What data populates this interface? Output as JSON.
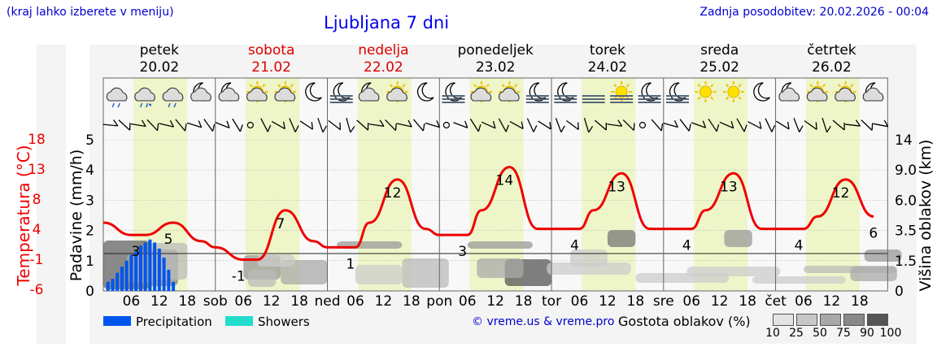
{
  "header": {
    "note": "(kraj lahko izberete v meniju)",
    "title": "Ljubljana 7 dni",
    "updated": "Zadnja posodobitev: 20.02.2026 - 00:04"
  },
  "days": [
    {
      "name": "petek",
      "date": "20.02",
      "abbr": "",
      "weekend": false
    },
    {
      "name": "sobota",
      "date": "21.02",
      "abbr": "sob",
      "weekend": true
    },
    {
      "name": "nedelja",
      "date": "22.02",
      "abbr": "ned",
      "weekend": true
    },
    {
      "name": "ponedeljek",
      "date": "23.02",
      "abbr": "pon",
      "weekend": false
    },
    {
      "name": "torek",
      "date": "24.02",
      "abbr": "tor",
      "weekend": false
    },
    {
      "name": "sreda",
      "date": "25.02",
      "abbr": "sre",
      "weekend": false
    },
    {
      "name": "četrtek",
      "date": "26.02",
      "abbr": "čet",
      "weekend": false
    }
  ],
  "hour_labels": [
    "06",
    "12",
    "18"
  ],
  "weather_icons": [
    "rain-cloud-icon",
    "snow-rain-cloud-icon",
    "rain-cloud-icon",
    "moon-cloud-icon",
    "moon-cloud-icon",
    "sun-cloud-icon",
    "sun-cloud-icon",
    "moon-icon",
    "moon-fog-icon",
    "moon-cloud-icon",
    "sun-cloud-icon",
    "moon-icon",
    "moon-fog-icon",
    "sun-cloud-icon",
    "sun-cloud-icon",
    "moon-fog-icon",
    "moon-fog-icon",
    "fog-icon",
    "sun-fog-icon",
    "moon-fog-icon",
    "moon-fog-icon",
    "sun-icon",
    "sun-icon",
    "moon-icon",
    "moon-cloud-icon",
    "sun-cloud-icon",
    "sun-cloud-icon",
    "moon-cloud-icon"
  ],
  "axes": {
    "temp_label": "Temperatura (°C)",
    "temp_ticks": [
      "18",
      "13",
      "8",
      "4",
      "-1",
      "-6"
    ],
    "left_label": "Padavine (mm/h)",
    "left_ticks": [
      "0",
      "1",
      "2",
      "3",
      "4",
      "5"
    ],
    "right_label": "Višina oblakov (km)",
    "right_ticks": [
      "0",
      "1.5",
      "3.5",
      "6.0",
      "9.0",
      "14"
    ]
  },
  "legend": {
    "precip": "Precipitation",
    "showers": "Showers",
    "precip_color": "#0055ee",
    "showers_color": "#22ddcc",
    "copyright": "© vreme.us & vreme.pro",
    "cloud_title": "Gostota oblakov (%)",
    "cloud_levels": [
      "10",
      "25",
      "50",
      "75",
      "90",
      "100"
    ],
    "cloud_colors": [
      "#e4e4e4",
      "#c8c8c8",
      "#a8a8a8",
      "#888888",
      "#555555"
    ]
  },
  "chart_data": {
    "type": "line",
    "title": "Ljubljana 7 dni",
    "xlabel": "",
    "ylabel": "Temperatura (°C)",
    "ylim": [
      -6,
      18
    ],
    "temperature": {
      "times_h": [
        0,
        6,
        9,
        15,
        21,
        24,
        30,
        33,
        39,
        45,
        48,
        54,
        57,
        63,
        69,
        72,
        78,
        81,
        87,
        93,
        96,
        102,
        105,
        111,
        117,
        120,
        126,
        129,
        135,
        141,
        144,
        150,
        153,
        159,
        165
      ],
      "values": [
        5,
        3,
        3,
        5,
        2,
        1,
        -1,
        -1,
        7,
        2,
        1,
        1,
        5,
        12,
        4,
        3,
        3,
        7,
        14,
        4,
        4,
        4,
        7,
        13,
        4,
        4,
        4,
        7,
        13,
        4,
        4,
        4,
        6,
        12,
        6
      ],
      "labels": [
        {
          "t": 8,
          "v": "3"
        },
        {
          "t": 15,
          "v": "5"
        },
        {
          "t": 30,
          "v": "-1"
        },
        {
          "t": 39,
          "v": "7"
        },
        {
          "t": 54,
          "v": "1"
        },
        {
          "t": 63,
          "v": "12"
        },
        {
          "t": 78,
          "v": "3"
        },
        {
          "t": 87,
          "v": "14"
        },
        {
          "t": 102,
          "v": "4"
        },
        {
          "t": 111,
          "v": "13"
        },
        {
          "t": 126,
          "v": "4"
        },
        {
          "t": 135,
          "v": "13"
        },
        {
          "t": 150,
          "v": "4"
        },
        {
          "t": 159,
          "v": "12"
        },
        {
          "t": 166,
          "v": "6"
        }
      ]
    },
    "precipitation_mm_h": {
      "times_h": [
        1,
        2,
        3,
        4,
        5,
        6,
        7,
        8,
        9,
        10,
        11,
        12,
        13,
        14,
        15
      ],
      "values": [
        0.3,
        0.4,
        0.6,
        0.8,
        1.0,
        1.2,
        1.3,
        1.5,
        1.6,
        1.7,
        1.6,
        1.4,
        1.1,
        0.7,
        0.3
      ]
    }
  }
}
